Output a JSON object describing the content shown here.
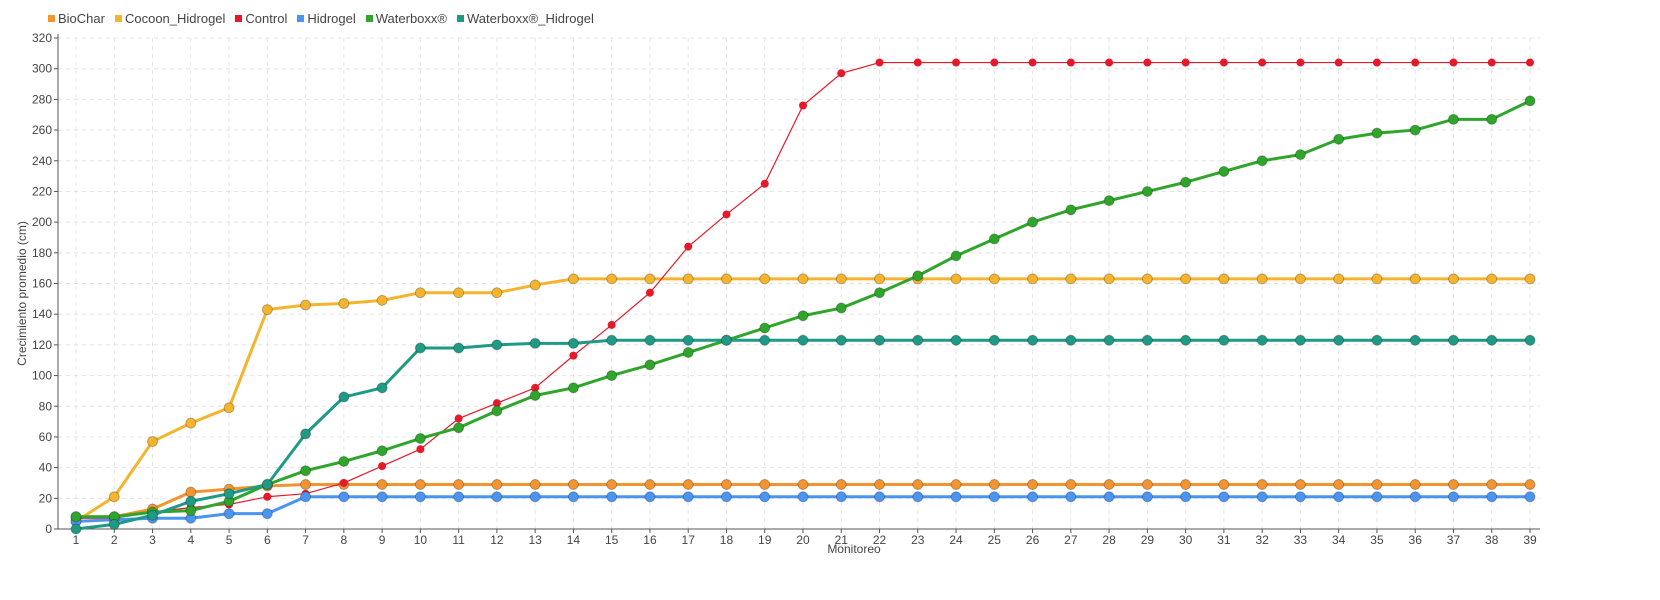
{
  "chart_data": {
    "type": "line",
    "title": "",
    "xlabel": "Monitoreo",
    "ylabel": "Crecimiento promedio (cm)",
    "ylim": [
      0,
      320
    ],
    "yticks": [
      0,
      20,
      40,
      60,
      80,
      100,
      120,
      140,
      160,
      180,
      200,
      220,
      240,
      260,
      280,
      300,
      320
    ],
    "grid": true,
    "legend_position": "top-left",
    "x": [
      "1",
      "2",
      "3",
      "4",
      "5",
      "6",
      "7",
      "8",
      "9",
      "10",
      "11",
      "12",
      "13",
      "14",
      "15",
      "16",
      "17",
      "18",
      "19",
      "20",
      "21",
      "22",
      "23",
      "24",
      "25",
      "26",
      "27",
      "28",
      "29",
      "30",
      "31",
      "32",
      "33",
      "34",
      "35",
      "36",
      "37",
      "38",
      "39"
    ],
    "series": [
      {
        "name": "BioChar",
        "color": "#f29530",
        "style": "thick",
        "values": [
          8,
          8,
          13,
          24,
          26,
          28,
          29,
          29,
          29,
          29,
          29,
          29,
          29,
          29,
          29,
          29,
          29,
          29,
          29,
          29,
          29,
          29,
          29,
          29,
          29,
          29,
          29,
          29,
          29,
          29,
          29,
          29,
          29,
          29,
          29,
          29,
          29,
          29,
          29
        ]
      },
      {
        "name": "Cocoon_Hidrogel",
        "color": "#f5b42d",
        "style": "thick",
        "values": [
          5,
          21,
          57,
          69,
          79,
          143,
          146,
          147,
          149,
          154,
          154,
          154,
          159,
          163,
          163,
          163,
          163,
          163,
          163,
          163,
          163,
          163,
          163,
          163,
          163,
          163,
          163,
          163,
          163,
          163,
          163,
          163,
          163,
          163,
          163,
          163,
          163,
          163,
          163
        ]
      },
      {
        "name": "Control",
        "color": "#e41a2a",
        "style": "thin",
        "values": [
          7,
          7,
          11,
          14,
          16,
          21,
          23,
          30,
          41,
          52,
          72,
          82,
          92,
          113,
          133,
          154,
          184,
          205,
          225,
          276,
          297,
          304,
          304,
          304,
          304,
          304,
          304,
          304,
          304,
          304,
          304,
          304,
          304,
          304,
          304,
          304,
          304,
          304,
          304
        ]
      },
      {
        "name": "Hidrogel",
        "color": "#4a95f0",
        "style": "thick",
        "values": [
          5,
          6,
          7,
          7,
          10,
          10,
          21,
          21,
          21,
          21,
          21,
          21,
          21,
          21,
          21,
          21,
          21,
          21,
          21,
          21,
          21,
          21,
          21,
          21,
          21,
          21,
          21,
          21,
          21,
          21,
          21,
          21,
          21,
          21,
          21,
          21,
          21,
          21,
          21
        ]
      },
      {
        "name": "Waterboxx®",
        "color": "#2fa62b",
        "style": "thick",
        "values": [
          8,
          8,
          11,
          12,
          18,
          29,
          38,
          44,
          51,
          59,
          66,
          77,
          87,
          92,
          100,
          107,
          115,
          123,
          131,
          139,
          144,
          154,
          165,
          178,
          189,
          200,
          208,
          214,
          220,
          226,
          233,
          240,
          244,
          254,
          258,
          260,
          267,
          267,
          279
        ]
      },
      {
        "name": "Waterboxx®_Hidrogel",
        "color": "#1f9a84",
        "style": "thick",
        "values": [
          0,
          3,
          9,
          18,
          23,
          29,
          62,
          86,
          92,
          118,
          118,
          120,
          121,
          121,
          123,
          123,
          123,
          123,
          123,
          123,
          123,
          123,
          123,
          123,
          123,
          123,
          123,
          123,
          123,
          123,
          123,
          123,
          123,
          123,
          123,
          123,
          123,
          123,
          123
        ]
      }
    ]
  }
}
